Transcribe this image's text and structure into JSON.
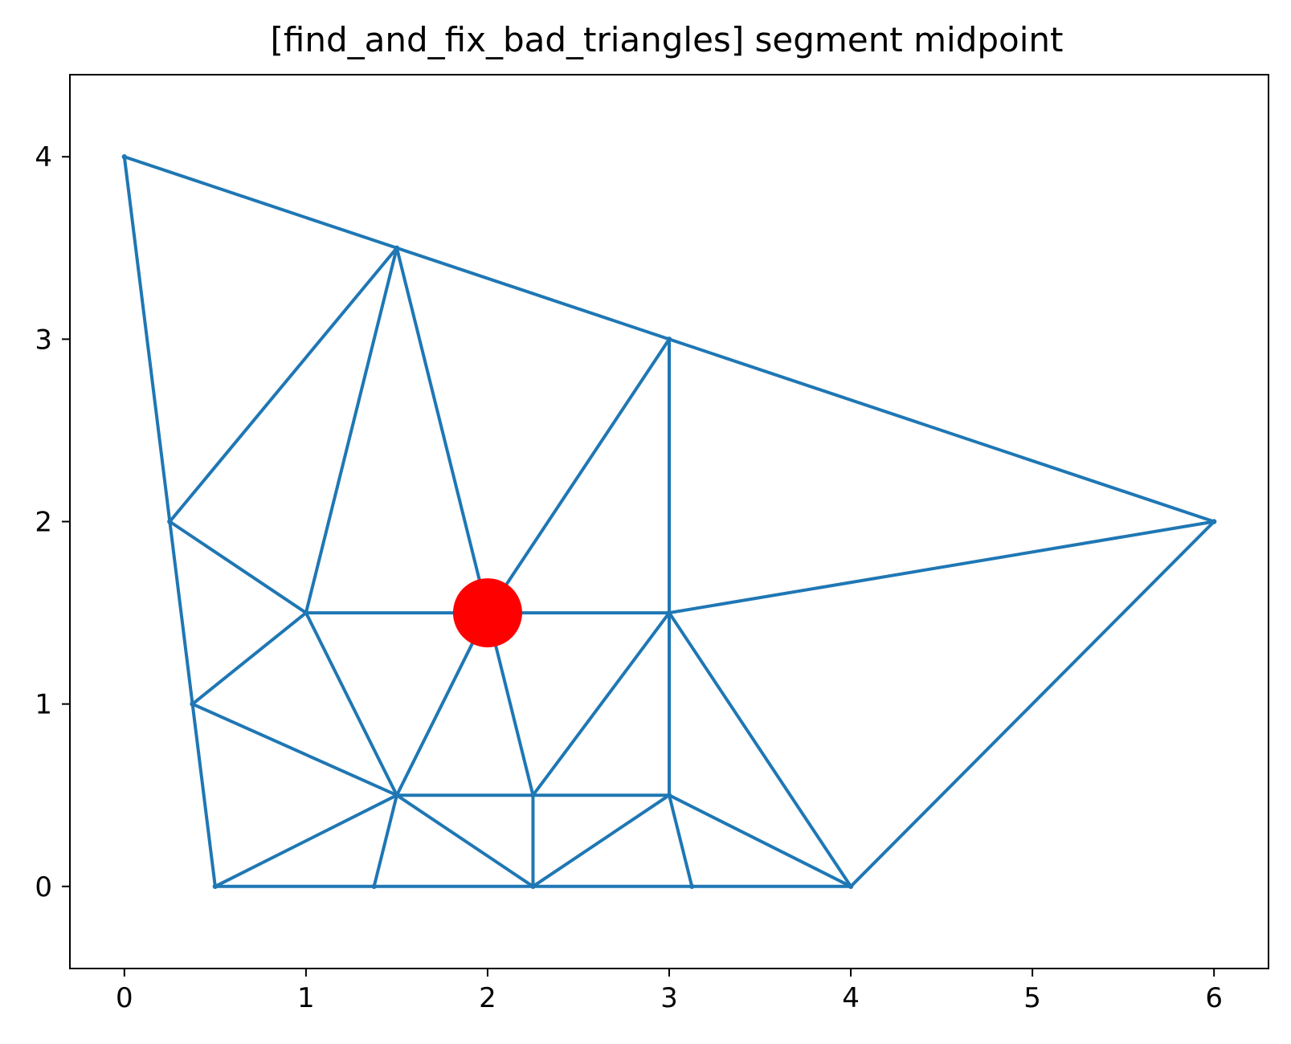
{
  "chart_data": {
    "type": "line",
    "title": "[find_and_fix_bad_triangles] segment midpoint",
    "xlabel": "",
    "ylabel": "",
    "xlim": [
      -0.3,
      6.3
    ],
    "ylim": [
      -0.45,
      4.45
    ],
    "xticks": [
      0,
      1,
      2,
      3,
      4,
      5,
      6
    ],
    "yticks": [
      0,
      1,
      2,
      3,
      4
    ],
    "xtick_labels": [
      "0",
      "1",
      "2",
      "3",
      "4",
      "5",
      "6"
    ],
    "ytick_labels": [
      "0",
      "1",
      "2",
      "3",
      "4"
    ],
    "grid": false,
    "legend": false,
    "mesh_color": "#1f77b4",
    "highlight_color": "#ff0000",
    "vertices": [
      [
        0,
        4
      ],
      [
        1.5,
        3.5
      ],
      [
        3,
        3
      ],
      [
        6,
        2
      ],
      [
        0.25,
        2
      ],
      [
        1,
        1.5
      ],
      [
        2,
        1.5
      ],
      [
        3,
        1.5
      ],
      [
        0.375,
        1
      ],
      [
        1.5,
        0.5
      ],
      [
        2.25,
        0.5
      ],
      [
        3,
        0.5
      ],
      [
        0.5,
        0
      ],
      [
        1.375,
        0
      ],
      [
        2.25,
        0
      ],
      [
        3.125,
        0
      ],
      [
        4,
        0
      ]
    ],
    "edges": [
      [
        0,
        1
      ],
      [
        1,
        2
      ],
      [
        2,
        3
      ],
      [
        0,
        4
      ],
      [
        4,
        8
      ],
      [
        8,
        12
      ],
      [
        12,
        13
      ],
      [
        13,
        14
      ],
      [
        14,
        15
      ],
      [
        15,
        16
      ],
      [
        16,
        3
      ],
      [
        4,
        1
      ],
      [
        1,
        5
      ],
      [
        1,
        6
      ],
      [
        4,
        5
      ],
      [
        5,
        6
      ],
      [
        6,
        7
      ],
      [
        7,
        3
      ],
      [
        6,
        2
      ],
      [
        2,
        7
      ],
      [
        5,
        8
      ],
      [
        8,
        9
      ],
      [
        5,
        9
      ],
      [
        9,
        6
      ],
      [
        9,
        12
      ],
      [
        9,
        13
      ],
      [
        9,
        10
      ],
      [
        9,
        14
      ],
      [
        6,
        10
      ],
      [
        10,
        7
      ],
      [
        10,
        11
      ],
      [
        10,
        14
      ],
      [
        14,
        11
      ],
      [
        11,
        7
      ],
      [
        7,
        16
      ],
      [
        11,
        15
      ],
      [
        11,
        16
      ]
    ],
    "highlight_point": [
      2,
      1.5
    ]
  }
}
